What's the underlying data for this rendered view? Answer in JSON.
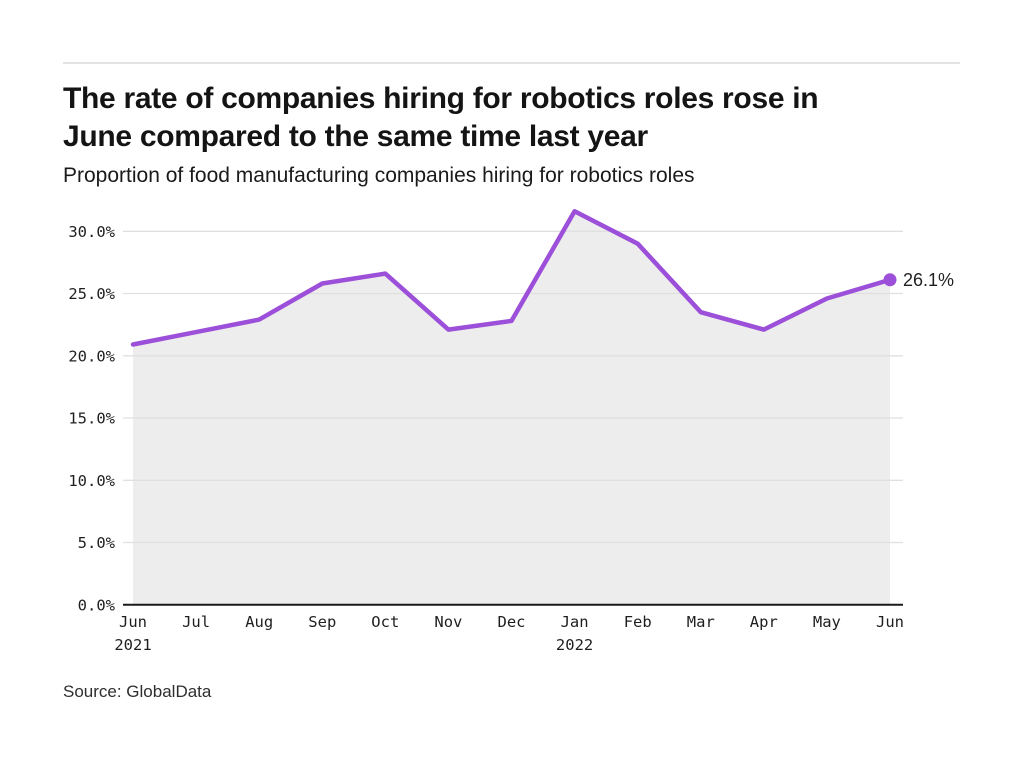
{
  "header": {
    "title_line1": "The rate of companies hiring for robotics roles rose in",
    "title_line2": "June compared to the same time last year",
    "subtitle": "Proportion of food manufacturing companies hiring for robotics roles"
  },
  "chart_data": {
    "type": "line",
    "title": "Proportion of food manufacturing companies hiring for robotics roles",
    "x_labels": [
      "Jun",
      "Jul",
      "Aug",
      "Sep",
      "Oct",
      "Nov",
      "Dec",
      "Jan",
      "Feb",
      "Mar",
      "Apr",
      "May",
      "Jun"
    ],
    "x_year_labels": [
      {
        "index": 0,
        "label": "2021"
      },
      {
        "index": 7,
        "label": "2022"
      }
    ],
    "values": [
      20.9,
      21.9,
      22.9,
      25.8,
      26.6,
      22.1,
      22.8,
      31.6,
      29.0,
      23.5,
      22.1,
      24.6,
      26.1
    ],
    "end_label": "26.1%",
    "y_ticks": [
      {
        "value": 0,
        "label": "0.0%"
      },
      {
        "value": 5,
        "label": "5.0%"
      },
      {
        "value": 10,
        "label": "10.0%"
      },
      {
        "value": 15,
        "label": "15.0%"
      },
      {
        "value": 20,
        "label": "20.0%"
      },
      {
        "value": 25,
        "label": "25.0%"
      },
      {
        "value": 30,
        "label": "30.0%"
      }
    ],
    "ylim": [
      0,
      31.6
    ],
    "grid": true,
    "legend": "none",
    "line_color": "#9c4fd9",
    "fill_color": "#ededed",
    "gridline_color": "#e0e0e0",
    "axis_color": "#1a1a1a",
    "tick_text_color": "#1f1f1f"
  },
  "footer": {
    "source": "Source: GlobalData"
  }
}
